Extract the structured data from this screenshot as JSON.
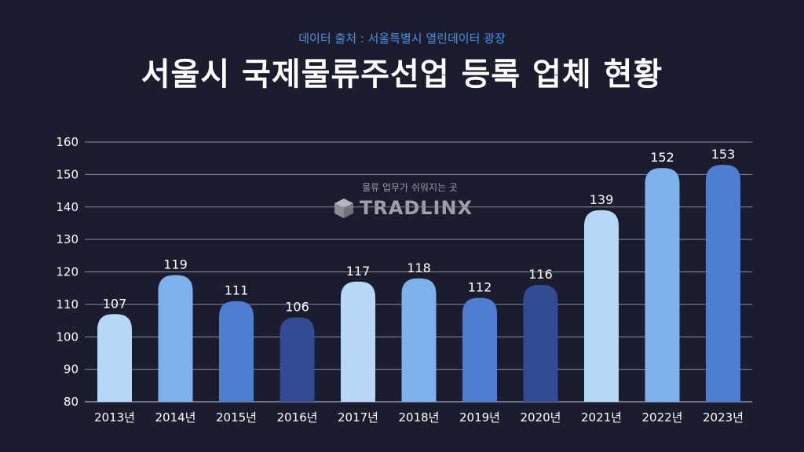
{
  "source": "데이터 출처 : 서울특별시 열린데이터 광장",
  "title": "서울시 국제물류주선업 등록 업체 현황",
  "watermark": {
    "tagline": "물류 업무가 쉬워지는 곳",
    "logo_text": "TRADLINX",
    "icon": "cube-icon"
  },
  "chart_data": {
    "type": "bar",
    "categories": [
      "2013년",
      "2014년",
      "2015년",
      "2016년",
      "2017년",
      "2018년",
      "2019년",
      "2020년",
      "2021년",
      "2022년",
      "2023년"
    ],
    "values": [
      107,
      119,
      111,
      106,
      117,
      118,
      112,
      116,
      139,
      152,
      153
    ],
    "colors": [
      "#b6d8f7",
      "#7eb1ec",
      "#4f7dcf",
      "#334a94",
      "#b6d8f7",
      "#7eb1ec",
      "#4f7dcf",
      "#334a94",
      "#b6d8f7",
      "#7eb1ec",
      "#4f7dcf"
    ],
    "ylim": [
      80,
      160
    ],
    "yticks": [
      80,
      90,
      100,
      110,
      120,
      130,
      140,
      150,
      160
    ],
    "grid": true,
    "xlabel": "",
    "ylabel": ""
  }
}
